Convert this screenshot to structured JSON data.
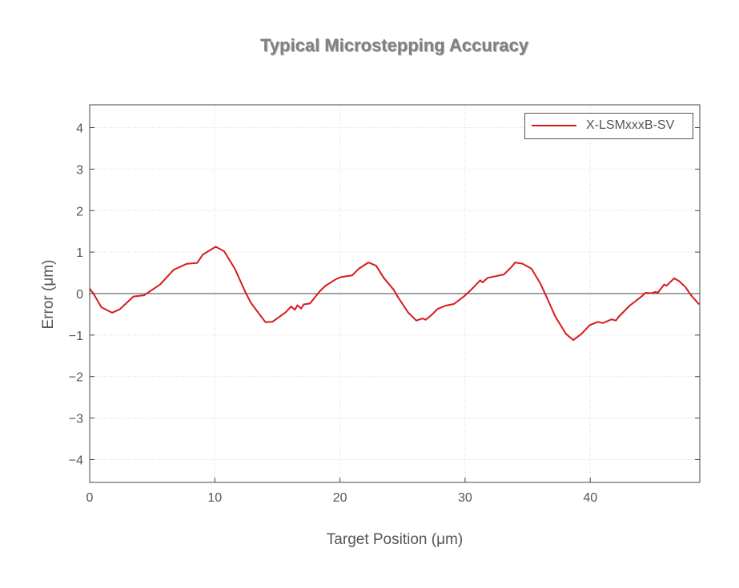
{
  "chart_data": {
    "type": "line",
    "title": "Typical Microstepping Accuracy",
    "xlabel": "Target Position (μm)",
    "ylabel": "Error (μm)",
    "xlim": [
      0,
      48.75
    ],
    "ylim": [
      -4.55,
      4.55
    ],
    "xticks": [
      0,
      10,
      20,
      30,
      40
    ],
    "yticks": [
      4,
      3,
      2,
      1,
      0,
      -1,
      -2,
      -3,
      -4
    ],
    "ytick_labels": [
      "4",
      "3",
      "2",
      "1",
      "0",
      "−1",
      "−2",
      "−3",
      "−4"
    ],
    "grid": true,
    "legend_position": "top-right",
    "zero_line": true,
    "series": [
      {
        "name": "X-LSMxxxB-SV",
        "color": "#d7191c",
        "x": [
          0,
          0.3,
          0.94,
          1.79,
          2.4,
          3.5,
          4.35,
          5.63,
          6.7,
          7.76,
          8.6,
          9.04,
          10.07,
          10.75,
          11.6,
          12.45,
          12.9,
          14.05,
          14.6,
          15.66,
          16.1,
          16.4,
          16.6,
          16.9,
          17.1,
          17.6,
          18.4,
          18.85,
          19.7,
          20.1,
          20.98,
          21.5,
          22.27,
          22.9,
          23.5,
          24.3,
          24.6,
          25.46,
          26.1,
          26.6,
          26.85,
          27.3,
          27.8,
          28.45,
          29.1,
          29.9,
          30.37,
          30.8,
          31.2,
          31.4,
          31.8,
          33.1,
          33.7,
          34.0,
          34.6,
          35.3,
          36.0,
          36.45,
          37.2,
          38.05,
          38.65,
          39.3,
          39.96,
          40.6,
          41.0,
          41.7,
          42.05,
          42.3,
          43.15,
          44.1,
          44.4,
          44.9,
          45.2,
          45.4,
          45.9,
          46.1,
          46.7,
          47.1,
          47.6,
          48.05,
          48.7
        ],
        "y": [
          0.12,
          0.0,
          -0.33,
          -0.46,
          -0.38,
          -0.07,
          -0.04,
          0.22,
          0.57,
          0.72,
          0.74,
          0.94,
          1.13,
          1.02,
          0.6,
          0.03,
          -0.23,
          -0.69,
          -0.68,
          -0.45,
          -0.31,
          -0.39,
          -0.28,
          -0.36,
          -0.26,
          -0.24,
          0.06,
          0.19,
          0.35,
          0.4,
          0.44,
          0.6,
          0.75,
          0.67,
          0.38,
          0.09,
          -0.07,
          -0.46,
          -0.65,
          -0.6,
          -0.63,
          -0.52,
          -0.37,
          -0.29,
          -0.25,
          -0.07,
          0.06,
          0.19,
          0.32,
          0.27,
          0.38,
          0.46,
          0.64,
          0.75,
          0.72,
          0.6,
          0.25,
          -0.04,
          -0.55,
          -0.97,
          -1.12,
          -0.97,
          -0.76,
          -0.68,
          -0.71,
          -0.62,
          -0.65,
          -0.55,
          -0.29,
          -0.07,
          0.02,
          0.01,
          0.04,
          0.02,
          0.22,
          0.19,
          0.37,
          0.3,
          0.16,
          -0.04,
          -0.26
        ]
      }
    ]
  }
}
